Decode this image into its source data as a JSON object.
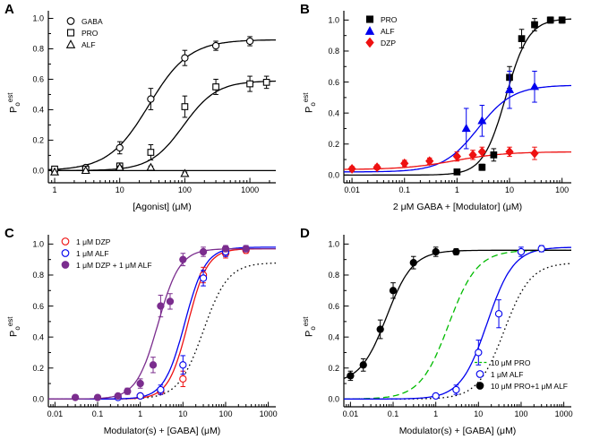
{
  "figure": {
    "bg": "#ffffff",
    "axis_color": "#000000"
  },
  "ylabel": {
    "main": "P",
    "sub": "o",
    "sup": "est"
  },
  "chart_data": [
    {
      "type": "scatter",
      "letter": "A",
      "xlabel": "[Agonist] (μM)",
      "x_min": 0.8,
      "x_max": 2500,
      "x_ticks": [
        1,
        10,
        100,
        1000
      ],
      "y_min": -0.08,
      "y_max": 1.05,
      "y_ticks": [
        0,
        0.2,
        0.4,
        0.6,
        0.8,
        1
      ],
      "legend_pos": "top-left",
      "series": [
        {
          "label": "GABA",
          "symbol": "circle",
          "color": "#000000",
          "fill": "#ffffff",
          "curve": {
            "style": "solid",
            "ymin": 0,
            "ymax": 0.86,
            "ec50": 28,
            "hill": 1.4
          },
          "points": [
            {
              "x": 1,
              "y": 0.005,
              "e": 0.01
            },
            {
              "x": 3,
              "y": 0.02,
              "e": 0.01
            },
            {
              "x": 10,
              "y": 0.15,
              "e": 0.04
            },
            {
              "x": 30,
              "y": 0.47,
              "e": 0.07
            },
            {
              "x": 100,
              "y": 0.74,
              "e": 0.05
            },
            {
              "x": 300,
              "y": 0.82,
              "e": 0.03
            },
            {
              "x": 1000,
              "y": 0.85,
              "e": 0.03
            }
          ]
        },
        {
          "label": "PRO",
          "symbol": "square",
          "color": "#000000",
          "fill": "#ffffff",
          "curve": {
            "style": "solid",
            "ymin": 0,
            "ymax": 0.59,
            "ec50": 95,
            "hill": 1.7
          },
          "points": [
            {
              "x": 1,
              "y": 0.01,
              "e": 0
            },
            {
              "x": 3,
              "y": 0.01,
              "e": 0
            },
            {
              "x": 10,
              "y": 0.03,
              "e": 0.02
            },
            {
              "x": 30,
              "y": 0.12,
              "e": 0.05
            },
            {
              "x": 100,
              "y": 0.42,
              "e": 0.07
            },
            {
              "x": 300,
              "y": 0.55,
              "e": 0.05
            },
            {
              "x": 1000,
              "y": 0.57,
              "e": 0.05
            },
            {
              "x": 1800,
              "y": 0.58,
              "e": 0.04
            }
          ]
        },
        {
          "label": "ALF",
          "symbol": "triangle",
          "color": "#000000",
          "fill": "#ffffff",
          "curve": {
            "style": "solid",
            "ymin": 0,
            "ymax": 0,
            "ec50": 1,
            "hill": 1
          },
          "points": [
            {
              "x": 1,
              "y": -0.01,
              "e": 0
            },
            {
              "x": 3,
              "y": 0,
              "e": 0
            },
            {
              "x": 10,
              "y": 0.02,
              "e": 0.01
            },
            {
              "x": 30,
              "y": 0.02,
              "e": 0.01
            },
            {
              "x": 100,
              "y": -0.02,
              "e": 0.01
            }
          ]
        }
      ],
      "extra_curves": []
    },
    {
      "type": "scatter",
      "letter": "B",
      "xlabel": "2 μM GABA + [Modulator] (μM)",
      "x_min": 0.007,
      "x_max": 150,
      "x_ticks": [
        0.01,
        0.1,
        1,
        10,
        100
      ],
      "y_min": -0.05,
      "y_max": 1.06,
      "y_ticks": [
        0,
        0.2,
        0.4,
        0.6,
        0.8,
        1
      ],
      "legend_pos": "top-left",
      "series": [
        {
          "label": "PRO",
          "symbol": "square",
          "color": "#000000",
          "fill": "#000000",
          "curve": {
            "style": "solid",
            "ymin": 0,
            "ymax": 1.01,
            "ec50": 8.5,
            "hill": 2.0
          },
          "points": [
            {
              "x": 1,
              "y": 0.02,
              "e": 0.01
            },
            {
              "x": 3,
              "y": 0.05,
              "e": 0.02
            },
            {
              "x": 5,
              "y": 0.13,
              "e": 0.04
            },
            {
              "x": 10,
              "y": 0.63,
              "e": 0.07
            },
            {
              "x": 17,
              "y": 0.88,
              "e": 0.06
            },
            {
              "x": 30,
              "y": 0.97,
              "e": 0.04
            },
            {
              "x": 60,
              "y": 1.0,
              "e": 0.02
            },
            {
              "x": 100,
              "y": 1.0,
              "e": 0.02
            }
          ]
        },
        {
          "label": "ALF",
          "symbol": "triangle",
          "color": "#0000ee",
          "fill": "#0000ee",
          "curve": {
            "style": "solid",
            "ymin": 0.02,
            "ymax": 0.58,
            "ec50": 2.5,
            "hill": 1.3
          },
          "points": [
            {
              "x": 1.5,
              "y": 0.3,
              "e": 0.13
            },
            {
              "x": 3,
              "y": 0.35,
              "e": 0.1
            },
            {
              "x": 10,
              "y": 0.55,
              "e": 0.12
            },
            {
              "x": 30,
              "y": 0.57,
              "e": 0.1
            }
          ]
        },
        {
          "label": "DZP",
          "symbol": "diamond",
          "color": "#ee1111",
          "fill": "#ee1111",
          "curve": {
            "style": "solid",
            "ymin": 0.035,
            "ymax": 0.15,
            "ec50": 0.9,
            "hill": 0.9
          },
          "points": [
            {
              "x": 0.01,
              "y": 0.04,
              "e": 0.015
            },
            {
              "x": 0.03,
              "y": 0.05,
              "e": 0.015
            },
            {
              "x": 0.1,
              "y": 0.075,
              "e": 0.02
            },
            {
              "x": 0.3,
              "y": 0.09,
              "e": 0.02
            },
            {
              "x": 1,
              "y": 0.12,
              "e": 0.03
            },
            {
              "x": 2,
              "y": 0.13,
              "e": 0.03
            },
            {
              "x": 3,
              "y": 0.15,
              "e": 0.03
            },
            {
              "x": 10,
              "y": 0.15,
              "e": 0.03
            },
            {
              "x": 30,
              "y": 0.14,
              "e": 0.04
            }
          ]
        }
      ],
      "extra_curves": []
    },
    {
      "type": "scatter",
      "letter": "C",
      "xlabel": "Modulator(s) + [GABA] (μM)",
      "x_min": 0.007,
      "x_max": 1500,
      "x_ticks": [
        0.01,
        0.1,
        1,
        10,
        100,
        1000
      ],
      "y_min": -0.05,
      "y_max": 1.06,
      "y_ticks": [
        0,
        0.2,
        0.4,
        0.6,
        0.8,
        1
      ],
      "legend_pos": "top-left",
      "series": [
        {
          "label": "1 μM DZP",
          "symbol": "circle",
          "color": "#ee1111",
          "fill": "#ffffff",
          "curve": {
            "style": "solid",
            "ymin": 0,
            "ymax": 0.97,
            "ec50": 13,
            "hill": 1.9
          },
          "points": [
            {
              "x": 1,
              "y": 0.02,
              "e": 0.01
            },
            {
              "x": 3,
              "y": 0.05,
              "e": 0.02
            },
            {
              "x": 10,
              "y": 0.13,
              "e": 0.05
            },
            {
              "x": 30,
              "y": 0.8,
              "e": 0.05
            },
            {
              "x": 100,
              "y": 0.94,
              "e": 0.03
            },
            {
              "x": 300,
              "y": 0.96,
              "e": 0.02
            }
          ]
        },
        {
          "label": "1 μM ALF",
          "symbol": "circle",
          "color": "#0000ee",
          "fill": "#ffffff",
          "curve": {
            "style": "solid",
            "ymin": 0,
            "ymax": 0.98,
            "ec50": 11,
            "hill": 1.8
          },
          "points": [
            {
              "x": 0.3,
              "y": 0.01,
              "e": 0
            },
            {
              "x": 1,
              "y": 0.02,
              "e": 0.01
            },
            {
              "x": 3,
              "y": 0.06,
              "e": 0.03
            },
            {
              "x": 10,
              "y": 0.22,
              "e": 0.06
            },
            {
              "x": 30,
              "y": 0.78,
              "e": 0.05
            },
            {
              "x": 100,
              "y": 0.95,
              "e": 0.03
            },
            {
              "x": 300,
              "y": 0.97,
              "e": 0.02
            }
          ]
        },
        {
          "label": "1 μM DZP + 1 μM ALF",
          "symbol": "circle",
          "color": "#7b2d8e",
          "fill": "#7b2d8e",
          "curve": {
            "style": "solid",
            "ymin": 0,
            "ymax": 0.97,
            "ec50": 2.6,
            "hill": 1.7
          },
          "points": [
            {
              "x": 0.03,
              "y": 0.01,
              "e": 0
            },
            {
              "x": 0.1,
              "y": 0.01,
              "e": 0
            },
            {
              "x": 0.3,
              "y": 0.02,
              "e": 0.01
            },
            {
              "x": 0.5,
              "y": 0.05,
              "e": 0.02
            },
            {
              "x": 1,
              "y": 0.1,
              "e": 0.03
            },
            {
              "x": 2,
              "y": 0.22,
              "e": 0.05
            },
            {
              "x": 3,
              "y": 0.6,
              "e": 0.07
            },
            {
              "x": 5,
              "y": 0.63,
              "e": 0.05
            },
            {
              "x": 10,
              "y": 0.9,
              "e": 0.04
            },
            {
              "x": 30,
              "y": 0.95,
              "e": 0.03
            },
            {
              "x": 100,
              "y": 0.97,
              "e": 0.02
            },
            {
              "x": 300,
              "y": 0.97,
              "e": 0.02
            }
          ]
        }
      ],
      "extra_curves": [
        {
          "style": "dotted",
          "color": "#000000",
          "ymin": 0,
          "ymax": 0.88,
          "ec50": 30,
          "hill": 1.5
        }
      ]
    },
    {
      "type": "scatter",
      "letter": "D",
      "xlabel": "Modulator(s) + [GABA] (μM)",
      "x_min": 0.007,
      "x_max": 1500,
      "x_ticks": [
        0.01,
        0.1,
        1,
        10,
        100,
        1000
      ],
      "y_min": -0.05,
      "y_max": 1.06,
      "y_ticks": [
        0,
        0.2,
        0.4,
        0.6,
        0.8,
        1
      ],
      "legend_pos": "bottom-right",
      "series": [
        {
          "label": "10 μM PRO",
          "symbol": "dash",
          "color": "#00bb00",
          "fill": "none",
          "curve": {
            "style": "dashed",
            "ymin": 0,
            "ymax": 0.96,
            "ec50": 2.0,
            "hill": 1.3
          },
          "points": []
        },
        {
          "label": "1 μM ALF",
          "symbol": "circle",
          "color": "#0000ee",
          "fill": "#ffffff",
          "curve": {
            "style": "solid",
            "ymin": 0,
            "ymax": 0.98,
            "ec50": 16,
            "hill": 1.4
          },
          "points": [
            {
              "x": 1,
              "y": 0.02,
              "e": 0.01
            },
            {
              "x": 3,
              "y": 0.06,
              "e": 0.03
            },
            {
              "x": 10,
              "y": 0.3,
              "e": 0.08
            },
            {
              "x": 30,
              "y": 0.55,
              "e": 0.09
            },
            {
              "x": 100,
              "y": 0.95,
              "e": 0.03
            },
            {
              "x": 300,
              "y": 0.97,
              "e": 0.02
            }
          ]
        },
        {
          "label": "10 μM PRO+1 μM ALF",
          "symbol": "circle",
          "color": "#000000",
          "fill": "#000000",
          "curve": {
            "style": "solid",
            "ymin": 0.1,
            "ymax": 0.96,
            "ec50": 0.07,
            "hill": 1.4
          },
          "points": [
            {
              "x": 0.01,
              "y": 0.15,
              "e": 0.03
            },
            {
              "x": 0.02,
              "y": 0.22,
              "e": 0.04
            },
            {
              "x": 0.05,
              "y": 0.45,
              "e": 0.06
            },
            {
              "x": 0.1,
              "y": 0.7,
              "e": 0.05
            },
            {
              "x": 0.3,
              "y": 0.88,
              "e": 0.04
            },
            {
              "x": 1,
              "y": 0.95,
              "e": 0.03
            },
            {
              "x": 3,
              "y": 0.95,
              "e": 0.02
            }
          ]
        }
      ],
      "extra_curves": [
        {
          "style": "dotted",
          "color": "#000000",
          "ymin": 0,
          "ymax": 0.88,
          "ec50": 40,
          "hill": 1.4
        }
      ]
    }
  ]
}
